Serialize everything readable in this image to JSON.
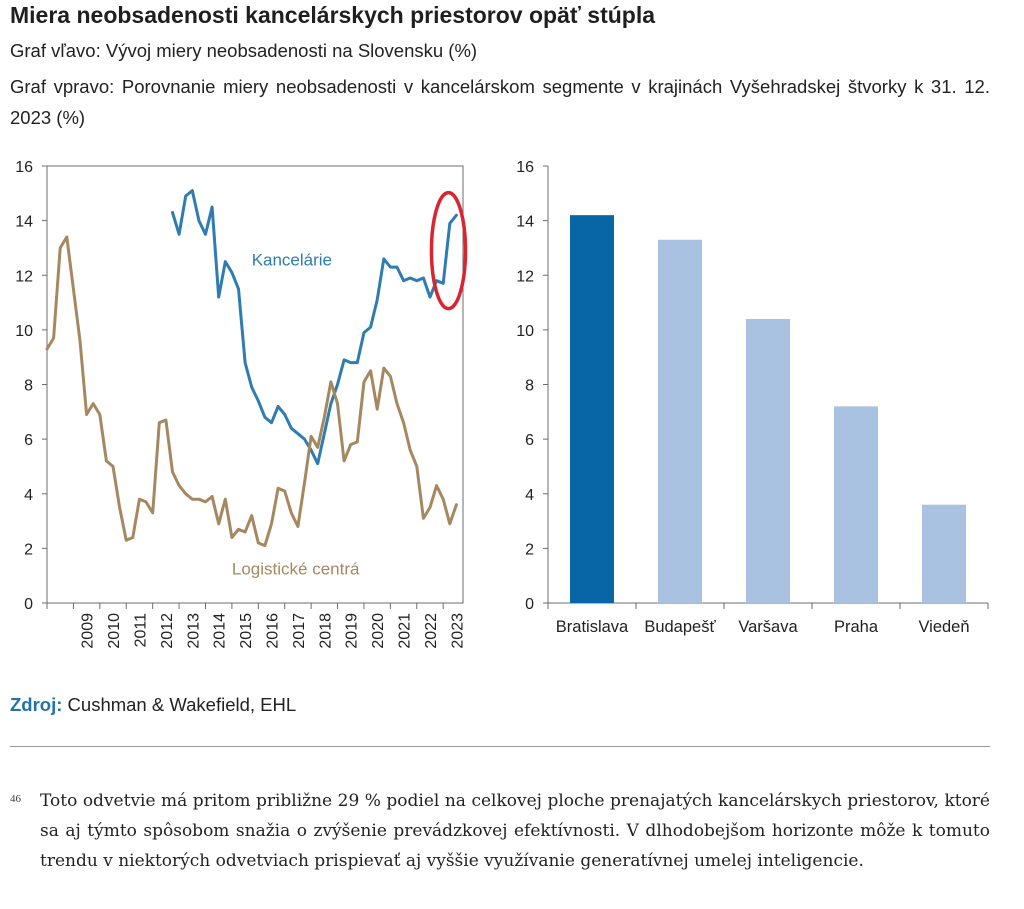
{
  "header": {
    "title": "Miera neobsadenosti kancelárskych priestorov opäť stúpla",
    "subtitle_left": "Graf vľavo: Vývoj miery neobsadenosti na Slovensku (%)",
    "subtitle_right": "Graf vpravo: Porovnanie miery neobsadenosti v kancelárskom segmente v krajinách Vyšehradskej štvorky k 31. 12. 2023 (%)"
  },
  "chart_data": [
    {
      "type": "line",
      "title": "Vývoj miery neobsadenosti na Slovensku (%)",
      "ylim": [
        0,
        16
      ],
      "yticks": [
        "0",
        "2",
        "4",
        "6",
        "8",
        "10",
        "12",
        "14",
        "16"
      ],
      "xticks": [
        "2009",
        "2010",
        "2011",
        "2012",
        "2013",
        "2014",
        "2015",
        "2016",
        "2017",
        "2018",
        "2019",
        "2020",
        "2021",
        "2022",
        "2023"
      ],
      "xlim": [
        2008,
        2023.75
      ],
      "highlight": "Kancelárie, 2023",
      "series": [
        {
          "name": "Kancelárie",
          "color": "#2f7cb0",
          "points": [
            [
              2012.75,
              14.3
            ],
            [
              2013.0,
              13.5
            ],
            [
              2013.25,
              14.9
            ],
            [
              2013.5,
              15.1
            ],
            [
              2013.75,
              14.0
            ],
            [
              2014.0,
              13.5
            ],
            [
              2014.25,
              14.5
            ],
            [
              2014.5,
              11.2
            ],
            [
              2014.75,
              12.5
            ],
            [
              2015.0,
              12.1
            ],
            [
              2015.25,
              11.5
            ],
            [
              2015.5,
              8.8
            ],
            [
              2015.75,
              7.9
            ],
            [
              2016.0,
              7.4
            ],
            [
              2016.25,
              6.8
            ],
            [
              2016.5,
              6.6
            ],
            [
              2016.75,
              7.2
            ],
            [
              2017.0,
              6.9
            ],
            [
              2017.25,
              6.4
            ],
            [
              2017.5,
              6.2
            ],
            [
              2017.75,
              6.0
            ],
            [
              2018.0,
              5.6
            ],
            [
              2018.25,
              5.1
            ],
            [
              2018.5,
              6.2
            ],
            [
              2018.75,
              7.3
            ],
            [
              2019.0,
              8.0
            ],
            [
              2019.25,
              8.9
            ],
            [
              2019.5,
              8.8
            ],
            [
              2019.75,
              8.8
            ],
            [
              2020.0,
              9.9
            ],
            [
              2020.25,
              10.1
            ],
            [
              2020.5,
              11.1
            ],
            [
              2020.75,
              12.6
            ],
            [
              2021.0,
              12.3
            ],
            [
              2021.25,
              12.3
            ],
            [
              2021.5,
              11.8
            ],
            [
              2021.75,
              11.9
            ],
            [
              2022.0,
              11.8
            ],
            [
              2022.25,
              11.9
            ],
            [
              2022.5,
              11.2
            ],
            [
              2022.75,
              11.8
            ],
            [
              2023.0,
              11.7
            ],
            [
              2023.25,
              13.9
            ],
            [
              2023.5,
              14.2
            ]
          ]
        },
        {
          "name": "Logistické centrá",
          "color": "#a68860",
          "points": [
            [
              2008.0,
              9.3
            ],
            [
              2008.25,
              9.7
            ],
            [
              2008.5,
              13.0
            ],
            [
              2008.75,
              13.4
            ],
            [
              2009.0,
              11.5
            ],
            [
              2009.25,
              9.6
            ],
            [
              2009.5,
              6.9
            ],
            [
              2009.75,
              7.3
            ],
            [
              2010.0,
              6.9
            ],
            [
              2010.25,
              5.2
            ],
            [
              2010.5,
              5.0
            ],
            [
              2010.75,
              3.5
            ],
            [
              2011.0,
              2.3
            ],
            [
              2011.25,
              2.4
            ],
            [
              2011.5,
              3.8
            ],
            [
              2011.75,
              3.7
            ],
            [
              2012.0,
              3.3
            ],
            [
              2012.25,
              6.6
            ],
            [
              2012.5,
              6.7
            ],
            [
              2012.75,
              4.8
            ],
            [
              2013.0,
              4.3
            ],
            [
              2013.25,
              4.0
            ],
            [
              2013.5,
              3.8
            ],
            [
              2013.75,
              3.8
            ],
            [
              2014.0,
              3.7
            ],
            [
              2014.25,
              3.9
            ],
            [
              2014.5,
              2.9
            ],
            [
              2014.75,
              3.8
            ],
            [
              2015.0,
              2.4
            ],
            [
              2015.25,
              2.7
            ],
            [
              2015.5,
              2.6
            ],
            [
              2015.75,
              3.2
            ],
            [
              2016.0,
              2.2
            ],
            [
              2016.25,
              2.1
            ],
            [
              2016.5,
              2.9
            ],
            [
              2016.75,
              4.2
            ],
            [
              2017.0,
              4.1
            ],
            [
              2017.25,
              3.3
            ],
            [
              2017.5,
              2.8
            ],
            [
              2017.75,
              4.4
            ],
            [
              2018.0,
              6.1
            ],
            [
              2018.25,
              5.7
            ],
            [
              2018.5,
              6.8
            ],
            [
              2018.75,
              8.1
            ],
            [
              2019.0,
              7.3
            ],
            [
              2019.25,
              5.2
            ],
            [
              2019.5,
              5.8
            ],
            [
              2019.75,
              5.9
            ],
            [
              2020.0,
              8.1
            ],
            [
              2020.25,
              8.5
            ],
            [
              2020.5,
              7.1
            ],
            [
              2020.75,
              8.6
            ],
            [
              2021.0,
              8.3
            ],
            [
              2021.25,
              7.3
            ],
            [
              2021.5,
              6.6
            ],
            [
              2021.75,
              5.6
            ],
            [
              2022.0,
              5.0
            ],
            [
              2022.25,
              3.1
            ],
            [
              2022.5,
              3.5
            ],
            [
              2022.75,
              4.3
            ],
            [
              2023.0,
              3.8
            ],
            [
              2023.25,
              2.9
            ],
            [
              2023.5,
              3.6
            ]
          ]
        }
      ]
    },
    {
      "type": "bar",
      "title": "Porovnanie miery neobsadenosti v kancelárskom segmente v krajinách V4 k 31. 12. 2023 (%)",
      "categories": [
        "Bratislava",
        "Budapešť",
        "Varšava",
        "Praha",
        "Viedeň"
      ],
      "values": [
        14.2,
        13.3,
        10.4,
        7.2,
        3.6
      ],
      "colors": [
        "#0866a6",
        "#a9c2e1",
        "#a9c2e1",
        "#a9c2e1",
        "#a9c2e1"
      ],
      "ylim": [
        0,
        16
      ],
      "yticks": [
        "0",
        "2",
        "4",
        "6",
        "8",
        "10",
        "12",
        "14",
        "16"
      ]
    }
  ],
  "source": {
    "label": "Zdroj:",
    "text": " Cushman & Wakefield, EHL"
  },
  "footnote": {
    "number": "46",
    "text": "Toto odvetvie má pritom približne 29 % podiel na celkovej ploche prenajatých kancelárskych priestorov, ktoré sa aj týmto spôsobom snažia o zvýšenie prevádzkovej efektívnosti. V dlhodobejšom horizonte môže k tomuto trendu v niektorých odvetviach prispievať aj vyššie využívanie generatívnej umelej inteligencie."
  }
}
